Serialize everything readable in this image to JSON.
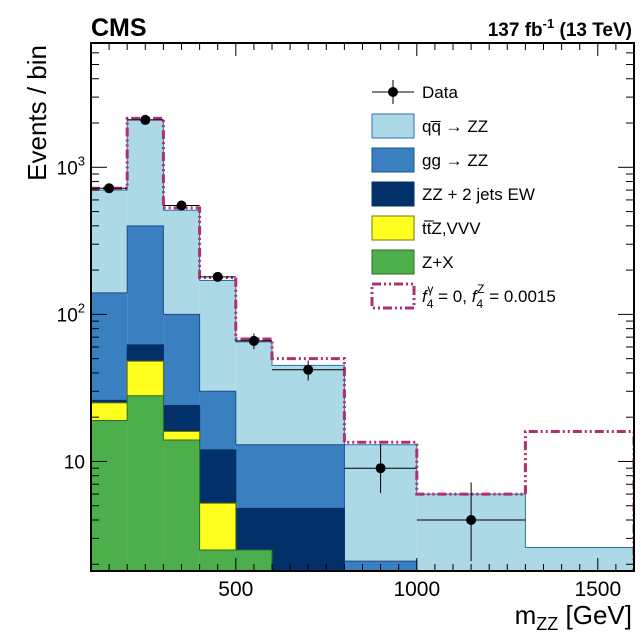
{
  "header": {
    "experiment": "CMS",
    "lumi_value": "137 fb",
    "lumi_exp": "-1",
    "lumi_energy": " (13 TeV)"
  },
  "chart_data": {
    "type": "bar",
    "subtype": "stacked-histogram",
    "xlabel": "m",
    "xlabel_sub": "ZZ",
    "xlabel_unit": " [GeV]",
    "ylabel": "Events / bin",
    "xlim": [
      100,
      1600
    ],
    "ylim": [
      1.8,
      7000
    ],
    "y_scale": "log",
    "grid": false,
    "legend_position": "top-right",
    "x_ticks": [
      {
        "value": 500,
        "label": "500"
      },
      {
        "value": 1000,
        "label": "1000"
      },
      {
        "value": 1500,
        "label": "1500"
      }
    ],
    "y_ticks": [
      {
        "value": 10,
        "base": "10",
        "exp": ""
      },
      {
        "value": 100,
        "base": "10",
        "exp": "2"
      },
      {
        "value": 1000,
        "base": "10",
        "exp": "3"
      }
    ],
    "bin_edges": [
      100,
      200,
      300,
      400,
      500,
      600,
      800,
      1000,
      1300,
      1600
    ],
    "stack_cumulative": {
      "Z+X": [
        19,
        28,
        14,
        2.5,
        2.5,
        1.8,
        1.8,
        1.8,
        1.8
      ],
      "ttZ,VVV": [
        25,
        48,
        16,
        5.2,
        2.5,
        1.8,
        1.8,
        1.8,
        1.8
      ],
      "ZZ + 2 jets EW": [
        26,
        62,
        24,
        12,
        4.8,
        4.8,
        1.8,
        1.8,
        1.8
      ],
      "gg to ZZ": [
        140,
        400,
        100,
        30,
        13,
        13,
        2.1,
        1.8,
        1.8
      ],
      "qq to ZZ": [
        700,
        2100,
        510,
        170,
        65,
        45,
        13,
        6,
        2.6
      ]
    },
    "series": [
      {
        "key": "qq",
        "name": "qq̅ → ZZ",
        "color": "#add8e6",
        "edge": "#2d71b5"
      },
      {
        "key": "gg",
        "name": "gg → ZZ",
        "color": "#3a7fc0",
        "edge": "#1f4e8a"
      },
      {
        "key": "ew",
        "name": "ZZ + 2 jets EW",
        "color": "#02316a",
        "edge": "#02316a"
      },
      {
        "key": "ttz",
        "name": "tt̅Z,VVV",
        "color": "#ffff20",
        "edge": "#777700"
      },
      {
        "key": "zx",
        "name": "Z+X",
        "color": "#4caf4c",
        "edge": "#2a6b2a"
      }
    ],
    "signal": {
      "name": "f4γ = 0, f4Z = 0.0015",
      "label_parts": {
        "f": "f",
        "sub": "4",
        "sup1": "γ",
        "mid": " = 0, ",
        "sup2": "Z",
        "end": " = 0.0015"
      },
      "color": "#b0306e",
      "values": [
        720,
        2150,
        530,
        178,
        68,
        50,
        13.5,
        6,
        16
      ]
    },
    "data": {
      "name": "Data",
      "x": [
        150,
        250,
        350,
        450,
        550,
        700,
        900,
        1150
      ],
      "y": [
        720,
        2100,
        550,
        180,
        66,
        42,
        9,
        4
      ],
      "xerr": [
        50,
        50,
        50,
        50,
        50,
        100,
        100,
        150
      ],
      "yerr_low": [
        27,
        45,
        23,
        13,
        8,
        6.5,
        2.9,
        1.9
      ],
      "yerr_high": [
        27,
        45,
        23,
        13,
        8,
        6.5,
        4.1,
        3.2
      ]
    }
  }
}
